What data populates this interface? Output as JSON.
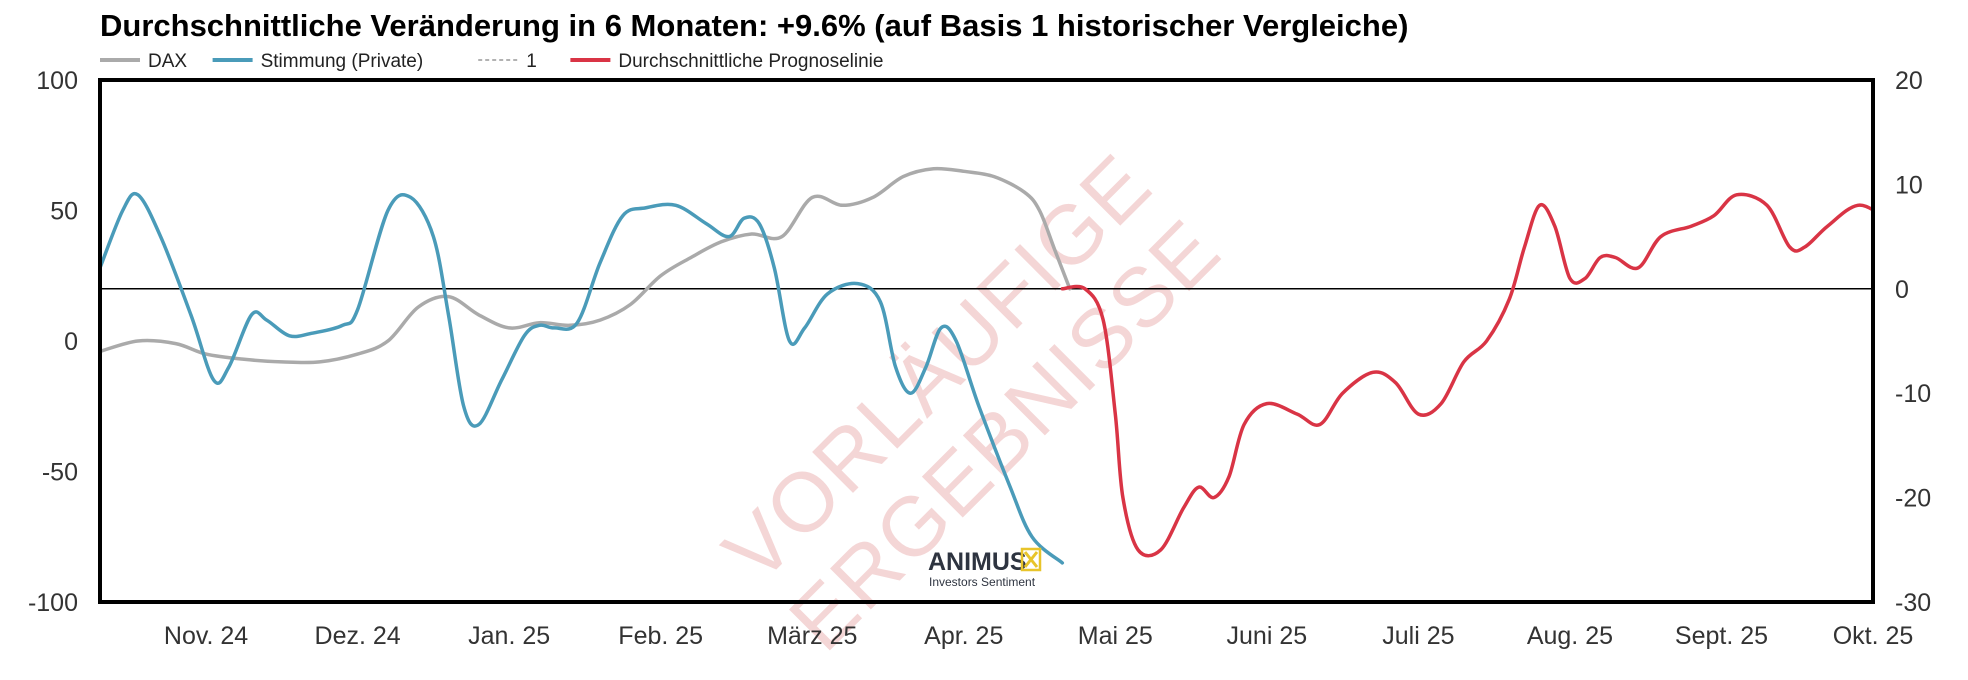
{
  "chart_data": {
    "type": "line",
    "title": "Durchschnittliche Veränderung in 6 Monaten: +9.6% (auf Basis 1 historischer Vergleiche)",
    "legend": {
      "placement": "top-left",
      "entries": [
        {
          "label": "DAX",
          "color": "#aaaaaa",
          "style": "solid"
        },
        {
          "label": "Stimmung (Private)",
          "color": "#4a9bb9",
          "style": "solid"
        },
        {
          "label": "1",
          "color": "#999999",
          "style": "dashed"
        },
        {
          "label": "Durchschnittliche Prognoselinie",
          "color": "#d93445",
          "style": "solid"
        }
      ]
    },
    "x_tick_labels": [
      "Nov. 24",
      "Dez. 24",
      "Jan. 25",
      "Feb. 25",
      "März 25",
      "Apr. 25",
      "Mai 25",
      "Juni 25",
      "Juli 25",
      "Aug. 25",
      "Sept. 25",
      "Okt. 25"
    ],
    "y_left": {
      "range": [
        -100,
        100
      ],
      "ticks": [
        "100",
        "50",
        "0",
        "-50",
        "-100"
      ]
    },
    "y_right": {
      "range": [
        -30,
        20
      ],
      "ticks": [
        "20",
        "10",
        "0",
        "-10",
        "-20",
        "-30"
      ]
    },
    "grid": false,
    "reference_line_right_value": 0,
    "x_range_months": [
      -0.7,
      11
    ],
    "series": [
      {
        "name": "DAX",
        "color": "#aaaaaa",
        "axis": "left",
        "points": [
          [
            -0.7,
            -4
          ],
          [
            -0.45,
            0
          ],
          [
            -0.2,
            -1
          ],
          [
            0,
            -5
          ],
          [
            0.25,
            -7
          ],
          [
            0.5,
            -8
          ],
          [
            0.75,
            -8
          ],
          [
            1,
            -5
          ],
          [
            1.2,
            0
          ],
          [
            1.4,
            13
          ],
          [
            1.6,
            17
          ],
          [
            1.8,
            10
          ],
          [
            2,
            5
          ],
          [
            2.2,
            7
          ],
          [
            2.4,
            6
          ],
          [
            2.6,
            8
          ],
          [
            2.8,
            14
          ],
          [
            3,
            25
          ],
          [
            3.2,
            32
          ],
          [
            3.4,
            38
          ],
          [
            3.6,
            41
          ],
          [
            3.8,
            40
          ],
          [
            4,
            55
          ],
          [
            4.2,
            52
          ],
          [
            4.4,
            55
          ],
          [
            4.6,
            63
          ],
          [
            4.8,
            66
          ],
          [
            5,
            65
          ],
          [
            5.2,
            63
          ],
          [
            5.4,
            57
          ],
          [
            5.5,
            50
          ],
          [
            5.6,
            35
          ],
          [
            5.7,
            20
          ]
        ]
      },
      {
        "name": "Stimmung (Private)",
        "color": "#4a9bb9",
        "axis": "left",
        "points": [
          [
            -0.7,
            28
          ],
          [
            -0.55,
            50
          ],
          [
            -0.45,
            56
          ],
          [
            -0.3,
            40
          ],
          [
            -0.1,
            10
          ],
          [
            0.05,
            -15
          ],
          [
            0.15,
            -10
          ],
          [
            0.3,
            10
          ],
          [
            0.4,
            8
          ],
          [
            0.55,
            2
          ],
          [
            0.7,
            3
          ],
          [
            0.9,
            6
          ],
          [
            1,
            12
          ],
          [
            1.2,
            50
          ],
          [
            1.35,
            55
          ],
          [
            1.5,
            40
          ],
          [
            1.6,
            10
          ],
          [
            1.7,
            -25
          ],
          [
            1.8,
            -32
          ],
          [
            1.95,
            -15
          ],
          [
            2.1,
            2
          ],
          [
            2.2,
            6
          ],
          [
            2.3,
            5
          ],
          [
            2.45,
            7
          ],
          [
            2.6,
            30
          ],
          [
            2.75,
            48
          ],
          [
            2.9,
            51
          ],
          [
            3.1,
            52
          ],
          [
            3.3,
            45
          ],
          [
            3.45,
            40
          ],
          [
            3.55,
            47
          ],
          [
            3.65,
            45
          ],
          [
            3.75,
            28
          ],
          [
            3.85,
            0
          ],
          [
            3.95,
            5
          ],
          [
            4.1,
            18
          ],
          [
            4.3,
            22
          ],
          [
            4.45,
            15
          ],
          [
            4.55,
            -10
          ],
          [
            4.65,
            -20
          ],
          [
            4.75,
            -10
          ],
          [
            4.85,
            5
          ],
          [
            4.95,
            0
          ],
          [
            5.1,
            -25
          ],
          [
            5.3,
            -55
          ],
          [
            5.45,
            -75
          ],
          [
            5.65,
            -85
          ]
        ]
      },
      {
        "name": "Durchschnittliche Prognoselinie",
        "color": "#d93445",
        "axis": "right",
        "points": [
          [
            5.65,
            0
          ],
          [
            5.8,
            0
          ],
          [
            5.92,
            -3
          ],
          [
            6.0,
            -12
          ],
          [
            6.05,
            -20
          ],
          [
            6.15,
            -25
          ],
          [
            6.3,
            -25
          ],
          [
            6.45,
            -21
          ],
          [
            6.55,
            -19
          ],
          [
            6.65,
            -20
          ],
          [
            6.75,
            -18
          ],
          [
            6.85,
            -13
          ],
          [
            7.0,
            -11
          ],
          [
            7.2,
            -12
          ],
          [
            7.35,
            -13
          ],
          [
            7.5,
            -10
          ],
          [
            7.7,
            -8
          ],
          [
            7.85,
            -9
          ],
          [
            8.0,
            -12
          ],
          [
            8.15,
            -11
          ],
          [
            8.3,
            -7
          ],
          [
            8.45,
            -5
          ],
          [
            8.6,
            -1
          ],
          [
            8.7,
            4
          ],
          [
            8.8,
            8
          ],
          [
            8.9,
            6
          ],
          [
            9.0,
            1
          ],
          [
            9.1,
            1
          ],
          [
            9.2,
            3
          ],
          [
            9.3,
            3
          ],
          [
            9.45,
            2
          ],
          [
            9.6,
            5
          ],
          [
            9.8,
            6
          ],
          [
            9.95,
            7
          ],
          [
            10.1,
            9
          ],
          [
            10.3,
            8
          ],
          [
            10.45,
            4
          ],
          [
            10.55,
            4
          ],
          [
            10.7,
            6
          ],
          [
            10.9,
            8
          ],
          [
            11.1,
            7
          ],
          [
            11.3,
            8
          ],
          [
            11.45,
            10
          ]
        ]
      }
    ],
    "watermark": [
      "VORLÄUFIGE",
      "ERGEBNISSE"
    ],
    "logo": {
      "name": "ANIMUS",
      "subtitle": "Investors Sentiment"
    }
  }
}
